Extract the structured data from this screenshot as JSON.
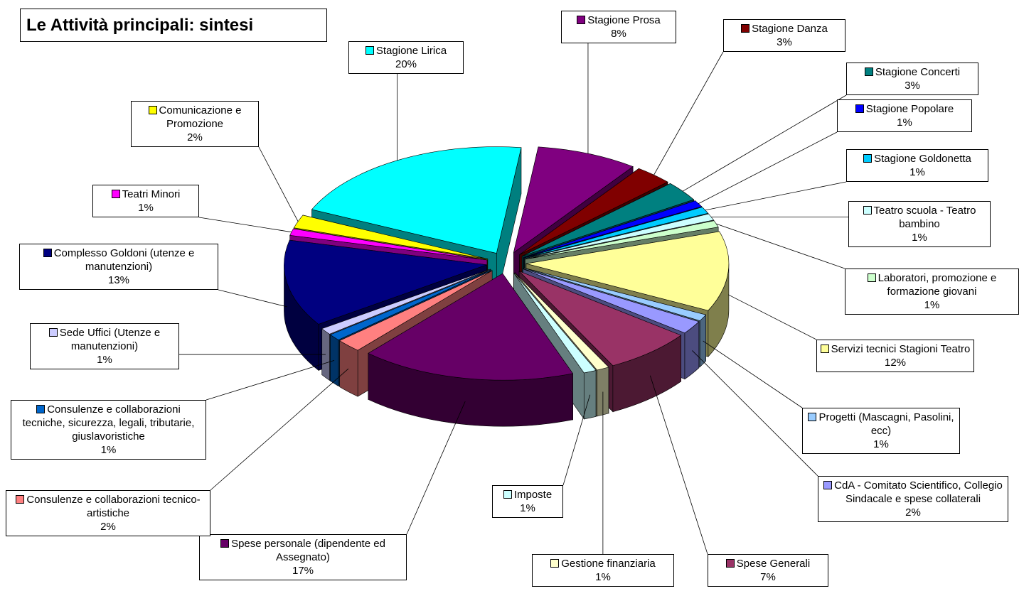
{
  "chart_data": {
    "type": "pie",
    "title": "Le Attività principali: sintesi",
    "categories": [
      "Stagione Prosa",
      "Stagione Danza",
      "Stagione Concerti",
      "Stagione Popolare",
      "Stagione Goldonetta",
      "Teatro scuola - Teatro bambino",
      "Laboratori, promozione e formazione giovani",
      "Servizi tecnici Stagioni Teatro",
      "Progetti (Mascagni, Pasolini, ecc)",
      "CdA - Comitato Scientifico, Collegio Sindacale e spese collaterali",
      "Spese Generali",
      "Gestione finanziaria",
      "Imposte",
      "Spese personale (dipendente ed Assegnato)",
      "Consulenze e collaborazioni tecnico-artistiche",
      "Consulenze e collaborazioni tecniche, sicurezza, legali, tributarie, giuslavoristiche",
      "Sede Uffici (Utenze e manutenzioni)",
      "Complesso Goldoni (utenze e manutenzioni)",
      "Teatri Minori",
      "Comunicazione e Promozione",
      "Stagione Lirica"
    ],
    "values": [
      8,
      3,
      3,
      1,
      1,
      1,
      1,
      12,
      1,
      2,
      7,
      1,
      1,
      17,
      2,
      1,
      1,
      13,
      1,
      2,
      20
    ],
    "value_labels": [
      "8%",
      "3%",
      "3%",
      "1%",
      "1%",
      "1%",
      "1%",
      "12%",
      "1%",
      "2%",
      "7%",
      "1%",
      "1%",
      "17%",
      "2%",
      "1%",
      "1%",
      "13%",
      "1%",
      "2%",
      "20%"
    ],
    "colors": [
      "#800080",
      "#800000",
      "#008080",
      "#0000ff",
      "#00ccff",
      "#ccffff",
      "#ccffcc",
      "#ffff99",
      "#99ccff",
      "#9999ff",
      "#993366",
      "#ffffcc",
      "#ccffff",
      "#660066",
      "#ff8080",
      "#0066cc",
      "#ccccff",
      "#000080",
      "#ff00ff",
      "#ffff00",
      "#00ffff"
    ]
  }
}
